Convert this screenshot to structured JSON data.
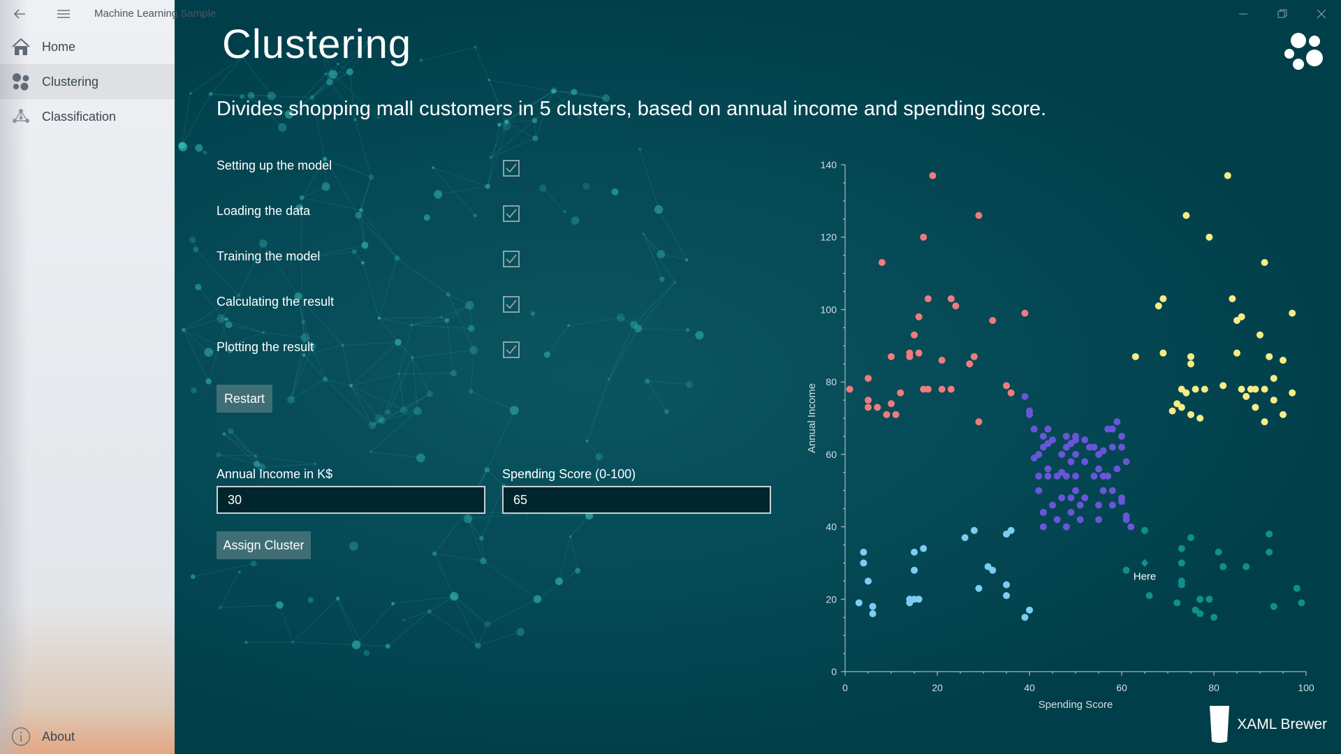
{
  "app": {
    "title": "Machine Learning Sample"
  },
  "sidebar": {
    "items": [
      {
        "label": "Home",
        "icon": "home-icon"
      },
      {
        "label": "Clustering",
        "icon": "clusters-icon"
      },
      {
        "label": "Classification",
        "icon": "network-icon"
      }
    ],
    "footer": {
      "label": "About",
      "icon": "info-icon"
    }
  },
  "page": {
    "title": "Clustering",
    "subtitle": "Divides shopping mall customers in 5 clusters, based on annual income and spending score."
  },
  "steps": [
    {
      "label": "Setting up the model",
      "checked": true
    },
    {
      "label": "Loading the data",
      "checked": true
    },
    {
      "label": "Training the model",
      "checked": true
    },
    {
      "label": "Calculating the result",
      "checked": true
    },
    {
      "label": "Plotting the result",
      "checked": true
    }
  ],
  "buttons": {
    "restart": "Restart",
    "assign": "Assign Cluster"
  },
  "inputs": {
    "income": {
      "label": "Annual Income in K$",
      "value": "30"
    },
    "spending": {
      "label": "Spending Score (0-100)",
      "value": "65"
    }
  },
  "brand": {
    "text": "XAML Brewer"
  },
  "colors": {
    "accent": "#003e49",
    "button": "#406e75",
    "sidebar": "#eceef1"
  },
  "chart_data": {
    "type": "scatter",
    "xlabel": "Spending Score",
    "ylabel": "Annual Income",
    "xlim": [
      0,
      100
    ],
    "ylim": [
      0,
      140
    ],
    "xticks": [
      0,
      20,
      40,
      60,
      80,
      100
    ],
    "yticks": [
      0,
      20,
      40,
      60,
      80,
      100,
      120,
      140
    ],
    "annotation": {
      "label": "Here",
      "x": 65,
      "y": 30
    },
    "series": [
      {
        "color": "#f07b7e",
        "points": [
          [
            1,
            78
          ],
          [
            5,
            81
          ],
          [
            5,
            75
          ],
          [
            5,
            73
          ],
          [
            7,
            73
          ],
          [
            9,
            71
          ],
          [
            10,
            87
          ],
          [
            10,
            74
          ],
          [
            11,
            71
          ],
          [
            12,
            77
          ],
          [
            14,
            87
          ],
          [
            14,
            88
          ],
          [
            15,
            93
          ],
          [
            16,
            88
          ],
          [
            16,
            98
          ],
          [
            17,
            120
          ],
          [
            17,
            78
          ],
          [
            18,
            78
          ],
          [
            18,
            103
          ],
          [
            19,
            137
          ],
          [
            21,
            78
          ],
          [
            21,
            86
          ],
          [
            23,
            78
          ],
          [
            23,
            103
          ],
          [
            24,
            101
          ],
          [
            27,
            85
          ],
          [
            28,
            87
          ],
          [
            29,
            126
          ],
          [
            29,
            69
          ],
          [
            32,
            97
          ],
          [
            35,
            79
          ],
          [
            36,
            77
          ],
          [
            39,
            99
          ],
          [
            8,
            113
          ]
        ]
      },
      {
        "color": "#f6ec86",
        "points": [
          [
            63,
            87
          ],
          [
            68,
            101
          ],
          [
            69,
            103
          ],
          [
            69,
            88
          ],
          [
            71,
            72
          ],
          [
            72,
            74
          ],
          [
            73,
            73
          ],
          [
            73,
            78
          ],
          [
            74,
            77
          ],
          [
            74,
            126
          ],
          [
            75,
            87
          ],
          [
            75,
            85
          ],
          [
            75,
            71
          ],
          [
            76,
            78
          ],
          [
            77,
            70
          ],
          [
            78,
            78
          ],
          [
            79,
            120
          ],
          [
            82,
            79
          ],
          [
            83,
            137
          ],
          [
            84,
            103
          ],
          [
            85,
            88
          ],
          [
            85,
            97
          ],
          [
            86,
            78
          ],
          [
            86,
            98
          ],
          [
            87,
            76
          ],
          [
            88,
            78
          ],
          [
            89,
            73
          ],
          [
            89,
            78
          ],
          [
            90,
            93
          ],
          [
            91,
            78
          ],
          [
            91,
            69
          ],
          [
            91,
            113
          ],
          [
            92,
            87
          ],
          [
            93,
            81
          ],
          [
            93,
            75
          ],
          [
            95,
            86
          ],
          [
            95,
            71
          ],
          [
            97,
            99
          ],
          [
            97,
            77
          ]
        ]
      },
      {
        "color": "#6a55d8",
        "points": [
          [
            39,
            76
          ],
          [
            40,
            72
          ],
          [
            40,
            71
          ],
          [
            41,
            67
          ],
          [
            41,
            59
          ],
          [
            42,
            60
          ],
          [
            42,
            54
          ],
          [
            42,
            50
          ],
          [
            43,
            65
          ],
          [
            43,
            62
          ],
          [
            43,
            44
          ],
          [
            43,
            40
          ],
          [
            44,
            63
          ],
          [
            44,
            67
          ],
          [
            44,
            56
          ],
          [
            44,
            54
          ],
          [
            45,
            64
          ],
          [
            45,
            46
          ],
          [
            46,
            54
          ],
          [
            46,
            42
          ],
          [
            47,
            60
          ],
          [
            47,
            55
          ],
          [
            47,
            48
          ],
          [
            48,
            65
          ],
          [
            48,
            62
          ],
          [
            48,
            54
          ],
          [
            48,
            40
          ],
          [
            49,
            63
          ],
          [
            49,
            58
          ],
          [
            49,
            48
          ],
          [
            49,
            44
          ],
          [
            50,
            65
          ],
          [
            50,
            64
          ],
          [
            50,
            60
          ],
          [
            50,
            54
          ],
          [
            50,
            50
          ],
          [
            51,
            46
          ],
          [
            51,
            42
          ],
          [
            52,
            64
          ],
          [
            52,
            58
          ],
          [
            52,
            48
          ],
          [
            53,
            62
          ],
          [
            54,
            62
          ],
          [
            54,
            54
          ],
          [
            55,
            60
          ],
          [
            55,
            56
          ],
          [
            55,
            46
          ],
          [
            55,
            42
          ],
          [
            56,
            61
          ],
          [
            56,
            54
          ],
          [
            56,
            50
          ],
          [
            57,
            67
          ],
          [
            57,
            54
          ],
          [
            58,
            62
          ],
          [
            58,
            67
          ],
          [
            58,
            50
          ],
          [
            58,
            46
          ],
          [
            59,
            69
          ],
          [
            59,
            56
          ],
          [
            60,
            65
          ],
          [
            60,
            62
          ],
          [
            60,
            48
          ],
          [
            60,
            47
          ],
          [
            61,
            58
          ],
          [
            61,
            43
          ],
          [
            61,
            42
          ],
          [
            62,
            40
          ]
        ]
      },
      {
        "color": "#7dccf2",
        "points": [
          [
            3,
            19
          ],
          [
            4,
            33
          ],
          [
            4,
            30
          ],
          [
            5,
            25
          ],
          [
            6,
            18
          ],
          [
            6,
            16
          ],
          [
            14,
            20
          ],
          [
            14,
            19
          ],
          [
            15,
            20
          ],
          [
            15,
            33
          ],
          [
            15,
            28
          ],
          [
            16,
            20
          ],
          [
            17,
            34
          ],
          [
            26,
            37
          ],
          [
            28,
            39
          ],
          [
            29,
            23
          ],
          [
            31,
            29
          ],
          [
            32,
            28
          ],
          [
            35,
            38
          ],
          [
            35,
            24
          ],
          [
            35,
            21
          ],
          [
            36,
            39
          ],
          [
            39,
            15
          ],
          [
            40,
            17
          ]
        ]
      },
      {
        "color": "#10908b",
        "points": [
          [
            61,
            28
          ],
          [
            65,
            39
          ],
          [
            66,
            21
          ],
          [
            72,
            19
          ],
          [
            73,
            34
          ],
          [
            73,
            30
          ],
          [
            73,
            25
          ],
          [
            73,
            24
          ],
          [
            75,
            37
          ],
          [
            76,
            17
          ],
          [
            77,
            16
          ],
          [
            77,
            20
          ],
          [
            79,
            20
          ],
          [
            80,
            15
          ],
          [
            81,
            33
          ],
          [
            82,
            29
          ],
          [
            87,
            29
          ],
          [
            93,
            18
          ],
          [
            92,
            38
          ],
          [
            92,
            33
          ],
          [
            98,
            23
          ],
          [
            99,
            19
          ]
        ]
      }
    ]
  }
}
